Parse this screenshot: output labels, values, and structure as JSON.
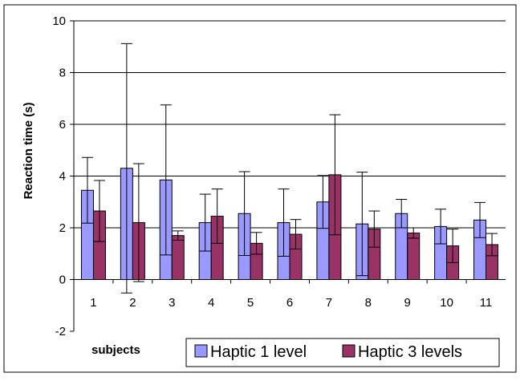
{
  "chart_data": {
    "type": "bar",
    "title": "",
    "xlabel": "subjects",
    "ylabel": "Reaction time (s)",
    "ylim": [
      -2,
      10
    ],
    "yticks": [
      -2,
      0,
      2,
      4,
      6,
      8,
      10
    ],
    "grid": true,
    "legend_position": "bottom-right",
    "categories": [
      "1",
      "2",
      "3",
      "4",
      "5",
      "6",
      "7",
      "8",
      "9",
      "10",
      "11"
    ],
    "series": [
      {
        "name": "Haptic 1 level",
        "color": "#9999ff",
        "values": [
          3.45,
          4.3,
          3.85,
          2.2,
          2.55,
          2.2,
          3.0,
          2.15,
          2.55,
          2.05,
          2.3
        ],
        "error": [
          1.27,
          4.82,
          2.9,
          1.1,
          1.62,
          1.3,
          1.02,
          2.0,
          0.55,
          0.67,
          0.68
        ]
      },
      {
        "name": "Haptic 3 levels",
        "color": "#993366",
        "values": [
          2.65,
          2.2,
          1.7,
          2.45,
          1.4,
          1.75,
          4.05,
          1.95,
          1.8,
          1.3,
          1.35
        ],
        "error": [
          1.18,
          2.28,
          0.18,
          1.05,
          0.42,
          0.57,
          2.32,
          0.7,
          0.2,
          0.65,
          0.43
        ]
      }
    ]
  }
}
